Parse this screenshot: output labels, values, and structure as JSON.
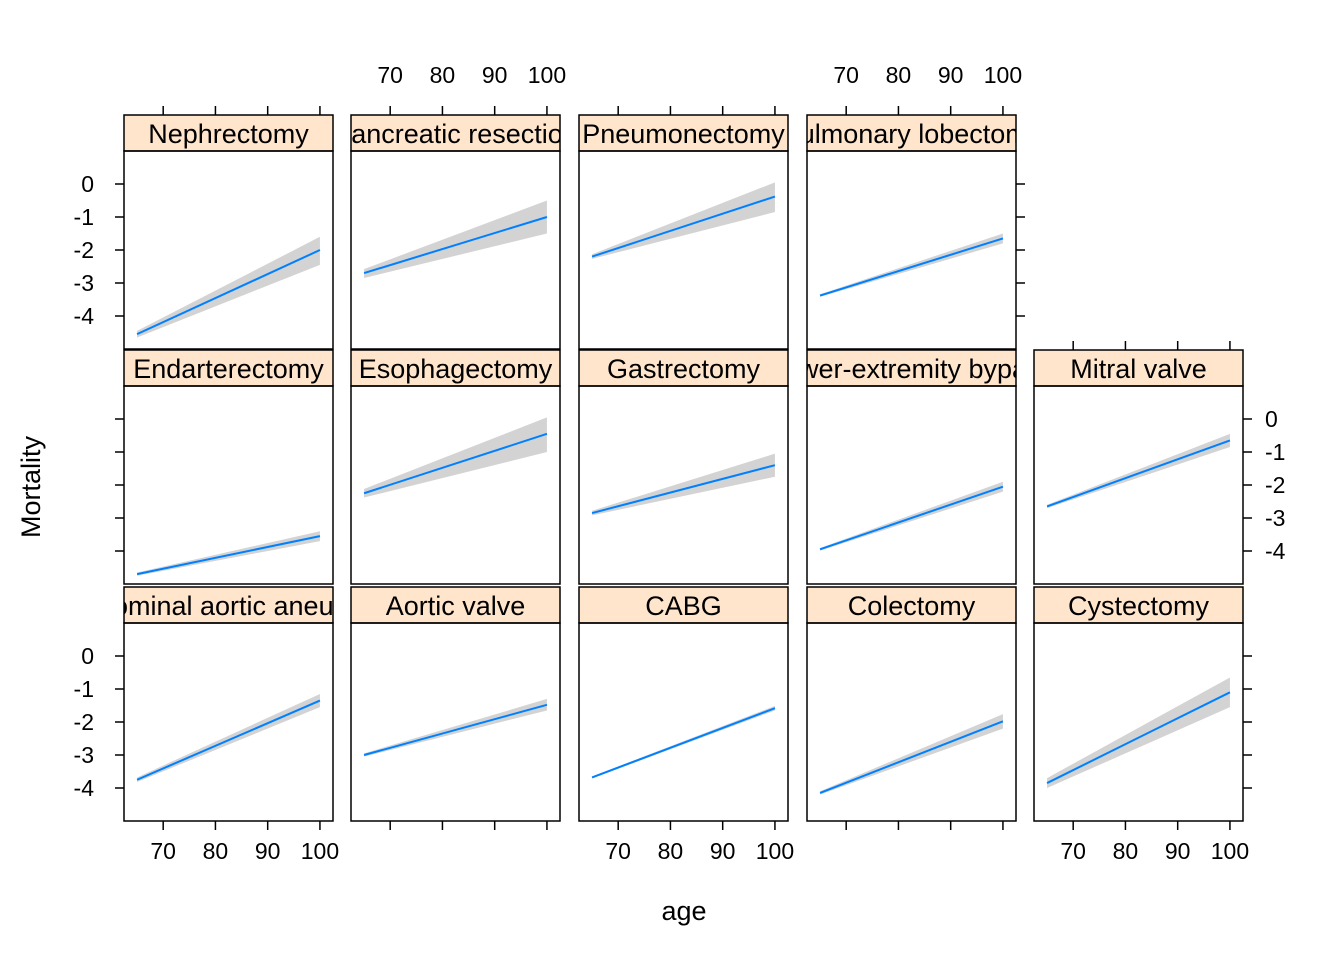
{
  "chart_data": {
    "type": "line",
    "xlabel": "age",
    "ylabel": "Mortality",
    "xlim": [
      62.5,
      102.5
    ],
    "ylim": [
      -5,
      1
    ],
    "x_ticks": [
      70,
      80,
      90,
      100
    ],
    "y_ticks": [
      0,
      -1,
      -2,
      -3,
      -4
    ],
    "colors": {
      "line": "#0080ff",
      "band": "#d3d3d3",
      "strip": "#ffe5cc",
      "axis": "#000000"
    },
    "panels": [
      {
        "row": 0,
        "col": 0,
        "label": "Nephrectomy",
        "x": [
          65,
          100
        ],
        "y": [
          -4.55,
          -2.0
        ],
        "ci_lo": [
          -4.65,
          -2.45
        ],
        "ci_hi": [
          -4.45,
          -1.6
        ]
      },
      {
        "row": 0,
        "col": 1,
        "label": "Pancreatic resection",
        "x": [
          65,
          100
        ],
        "y": [
          -2.7,
          -1.0
        ],
        "ci_lo": [
          -2.85,
          -1.5
        ],
        "ci_hi": [
          -2.58,
          -0.5
        ]
      },
      {
        "row": 0,
        "col": 2,
        "label": "Pneumonectomy",
        "x": [
          65,
          100
        ],
        "y": [
          -2.2,
          -0.38
        ],
        "ci_lo": [
          -2.27,
          -0.85
        ],
        "ci_hi": [
          -2.13,
          0.05
        ]
      },
      {
        "row": 0,
        "col": 3,
        "label": "Pulmonary lobectomy",
        "x": [
          65,
          100
        ],
        "y": [
          -3.38,
          -1.65
        ],
        "ci_lo": [
          -3.42,
          -1.8
        ],
        "ci_hi": [
          -3.34,
          -1.5
        ]
      },
      {
        "row": 1,
        "col": 0,
        "label": "Endarterectomy",
        "x": [
          65,
          100
        ],
        "y": [
          -4.7,
          -3.55
        ],
        "ci_lo": [
          -4.75,
          -3.7
        ],
        "ci_hi": [
          -4.65,
          -3.4
        ]
      },
      {
        "row": 1,
        "col": 1,
        "label": "Esophagectomy",
        "x": [
          65,
          100
        ],
        "y": [
          -2.25,
          -0.45
        ],
        "ci_lo": [
          -2.38,
          -1.0
        ],
        "ci_hi": [
          -2.12,
          0.05
        ]
      },
      {
        "row": 1,
        "col": 2,
        "label": "Gastrectomy",
        "x": [
          65,
          100
        ],
        "y": [
          -2.85,
          -1.4
        ],
        "ci_lo": [
          -2.92,
          -1.75
        ],
        "ci_hi": [
          -2.78,
          -1.05
        ]
      },
      {
        "row": 1,
        "col": 3,
        "label": "Lower-extremity bypass",
        "x": [
          65,
          100
        ],
        "y": [
          -3.95,
          -2.05
        ],
        "ci_lo": [
          -3.99,
          -2.2
        ],
        "ci_hi": [
          -3.91,
          -1.9
        ]
      },
      {
        "row": 1,
        "col": 4,
        "label": "Mitral valve",
        "x": [
          65,
          100
        ],
        "y": [
          -2.65,
          -0.65
        ],
        "ci_lo": [
          -2.7,
          -0.85
        ],
        "ci_hi": [
          -2.6,
          -0.45
        ]
      },
      {
        "row": 2,
        "col": 0,
        "label": "Abdominal aortic aneurysm",
        "x": [
          65,
          100
        ],
        "y": [
          -3.75,
          -1.35
        ],
        "ci_lo": [
          -3.82,
          -1.55
        ],
        "ci_hi": [
          -3.68,
          -1.15
        ]
      },
      {
        "row": 2,
        "col": 1,
        "label": "Aortic valve",
        "x": [
          65,
          100
        ],
        "y": [
          -3.0,
          -1.48
        ],
        "ci_lo": [
          -3.05,
          -1.65
        ],
        "ci_hi": [
          -2.95,
          -1.3
        ]
      },
      {
        "row": 2,
        "col": 2,
        "label": "CABG",
        "x": [
          65,
          100
        ],
        "y": [
          -3.68,
          -1.58
        ],
        "ci_lo": [
          -3.71,
          -1.65
        ],
        "ci_hi": [
          -3.65,
          -1.51
        ]
      },
      {
        "row": 2,
        "col": 3,
        "label": "Colectomy",
        "x": [
          65,
          100
        ],
        "y": [
          -4.15,
          -1.98
        ],
        "ci_lo": [
          -4.2,
          -2.2
        ],
        "ci_hi": [
          -4.1,
          -1.76
        ]
      },
      {
        "row": 2,
        "col": 4,
        "label": "Cystectomy",
        "x": [
          65,
          100
        ],
        "y": [
          -3.85,
          -1.1
        ],
        "ci_lo": [
          -4.0,
          -1.55
        ],
        "ci_hi": [
          -3.7,
          -0.65
        ]
      }
    ]
  }
}
